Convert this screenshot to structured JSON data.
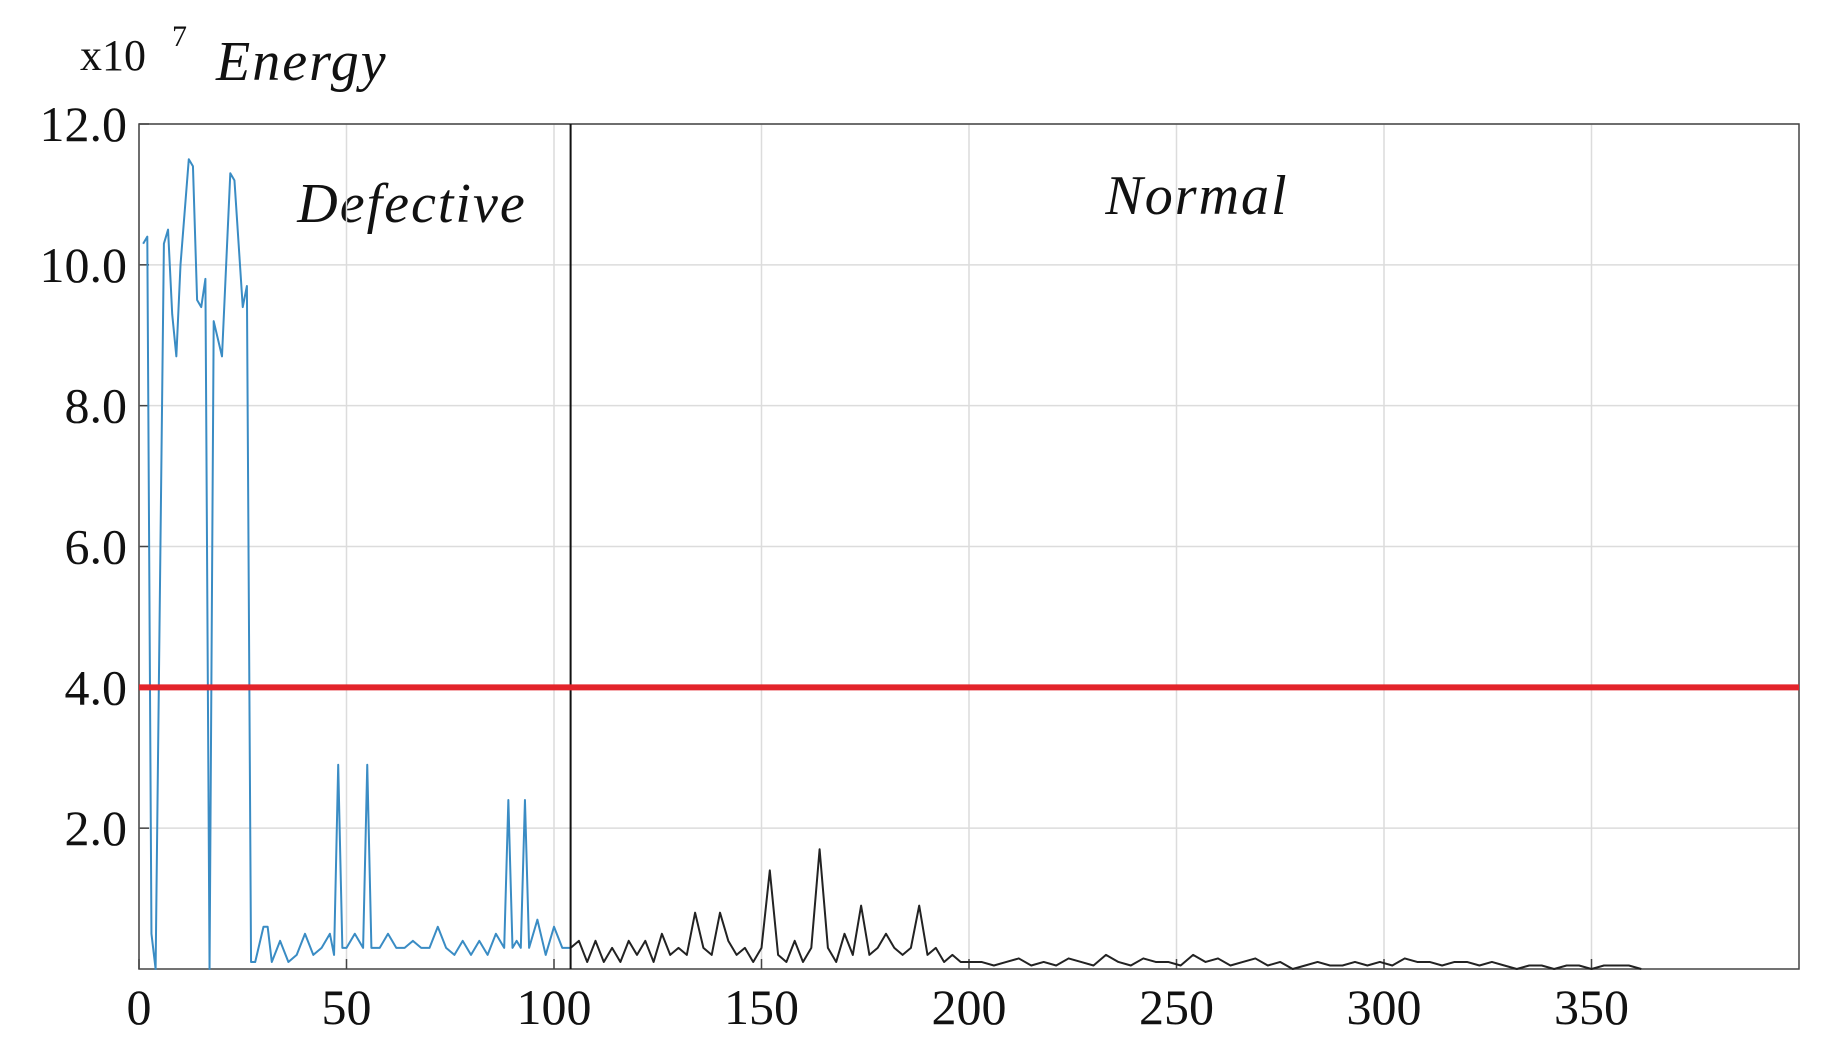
{
  "chart_data": {
    "type": "line",
    "ylabel_prefix": "x10",
    "ylabel_exponent": "7",
    "ylabel": "Energy",
    "annotations": [
      "Defective",
      "Normal"
    ],
    "xlim": [
      0,
      400
    ],
    "xticks": [
      0,
      50,
      100,
      150,
      200,
      250,
      300,
      350
    ],
    "ylim": [
      0,
      12
    ],
    "yticks": [
      {
        "value": 2,
        "label": "2.0"
      },
      {
        "value": 4,
        "label": "4.0"
      },
      {
        "value": 6,
        "label": "6.0"
      },
      {
        "value": 8,
        "label": "8.0"
      },
      {
        "value": 10,
        "label": "10.0"
      },
      {
        "value": 12,
        "label": "12.0"
      }
    ],
    "grid": true,
    "threshold": {
      "value": 4,
      "color": "#e3242b"
    },
    "divider_x": 104,
    "series": [
      {
        "color": "#3a8cc4",
        "x": [
          1,
          2,
          3,
          4,
          6,
          7,
          8,
          9,
          10,
          12,
          13,
          14,
          15,
          16,
          17,
          18,
          20,
          22,
          23,
          24,
          25,
          26,
          27,
          28,
          30,
          31,
          32,
          34,
          36,
          38,
          40,
          42,
          44,
          46,
          47,
          48,
          49,
          50,
          52,
          54,
          55,
          56,
          58,
          60,
          62,
          64,
          66,
          68,
          70,
          72,
          74,
          76,
          78,
          80,
          82,
          84,
          86,
          88,
          89,
          90,
          91,
          92,
          93,
          94,
          96,
          98,
          100,
          102,
          104
        ],
        "values": [
          10.3,
          10.4,
          0.5,
          0.0,
          10.3,
          10.5,
          9.3,
          8.7,
          10.0,
          11.5,
          11.4,
          9.5,
          9.4,
          9.8,
          0.0,
          9.2,
          8.7,
          11.3,
          11.2,
          10.3,
          9.4,
          9.7,
          0.1,
          0.1,
          0.6,
          0.6,
          0.1,
          0.4,
          0.1,
          0.2,
          0.5,
          0.2,
          0.3,
          0.5,
          0.2,
          2.9,
          0.3,
          0.3,
          0.5,
          0.3,
          2.9,
          0.3,
          0.3,
          0.5,
          0.3,
          0.3,
          0.4,
          0.3,
          0.3,
          0.6,
          0.3,
          0.2,
          0.4,
          0.2,
          0.4,
          0.2,
          0.5,
          0.3,
          2.4,
          0.3,
          0.4,
          0.3,
          2.4,
          0.3,
          0.7,
          0.2,
          0.6,
          0.3,
          0.3
        ]
      },
      {
        "color": "#222222",
        "x": [
          104,
          106,
          108,
          110,
          112,
          114,
          116,
          118,
          120,
          122,
          124,
          126,
          128,
          130,
          132,
          134,
          136,
          138,
          140,
          142,
          144,
          146,
          148,
          150,
          152,
          154,
          156,
          158,
          160,
          162,
          164,
          166,
          168,
          170,
          172,
          174,
          176,
          178,
          180,
          182,
          184,
          186,
          188,
          190,
          192,
          194,
          196,
          198,
          200,
          203,
          206,
          209,
          212,
          215,
          218,
          221,
          224,
          227,
          230,
          233,
          236,
          239,
          242,
          245,
          248,
          251,
          254,
          257,
          260,
          263,
          266,
          269,
          272,
          275,
          278,
          281,
          284,
          287,
          290,
          293,
          296,
          299,
          302,
          305,
          308,
          311,
          314,
          317,
          320,
          323,
          326,
          329,
          332,
          335,
          338,
          341,
          344,
          347,
          350,
          353,
          356,
          359,
          362
        ],
        "values": [
          0.3,
          0.4,
          0.1,
          0.4,
          0.1,
          0.3,
          0.1,
          0.4,
          0.2,
          0.4,
          0.1,
          0.5,
          0.2,
          0.3,
          0.2,
          0.8,
          0.3,
          0.2,
          0.8,
          0.4,
          0.2,
          0.3,
          0.1,
          0.3,
          1.4,
          0.2,
          0.1,
          0.4,
          0.1,
          0.3,
          1.7,
          0.3,
          0.1,
          0.5,
          0.2,
          0.9,
          0.2,
          0.3,
          0.5,
          0.3,
          0.2,
          0.3,
          0.9,
          0.2,
          0.3,
          0.1,
          0.2,
          0.1,
          0.1,
          0.1,
          0.05,
          0.1,
          0.15,
          0.05,
          0.1,
          0.05,
          0.15,
          0.1,
          0.05,
          0.2,
          0.1,
          0.05,
          0.15,
          0.1,
          0.1,
          0.05,
          0.2,
          0.1,
          0.15,
          0.05,
          0.1,
          0.15,
          0.05,
          0.1,
          0.0,
          0.05,
          0.1,
          0.05,
          0.05,
          0.1,
          0.05,
          0.1,
          0.05,
          0.15,
          0.1,
          0.1,
          0.05,
          0.1,
          0.1,
          0.05,
          0.1,
          0.05,
          0.0,
          0.05,
          0.05,
          0.0,
          0.05,
          0.05,
          0.0,
          0.05,
          0.05,
          0.05,
          0.0
        ]
      }
    ]
  }
}
